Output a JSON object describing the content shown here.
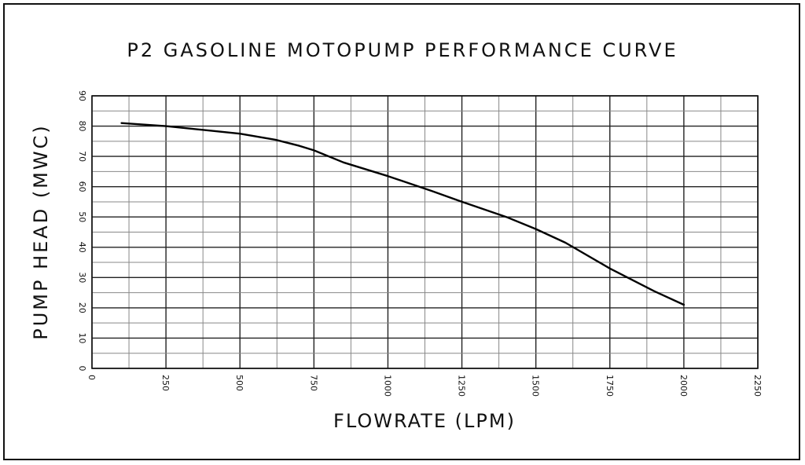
{
  "chart_data": {
    "type": "line",
    "title": "P2 GASOLINE MOTOPUMP PERFORMANCE CURVE",
    "xlabel": "FLOWRATE (LPM)",
    "ylabel": "PUMP HEAD (MWC)",
    "xlim": [
      0,
      2250
    ],
    "ylim": [
      0,
      90
    ],
    "x_ticks": [
      "0",
      "250",
      "500",
      "750",
      "1000",
      "1250",
      "1500",
      "1750",
      "2000",
      "2250"
    ],
    "y_ticks": [
      "0",
      "10",
      "20",
      "30",
      "40",
      "50",
      "60",
      "70",
      "80",
      "90"
    ],
    "grid": true,
    "x_minor_step": 125,
    "y_minor_step": 5,
    "series": [
      {
        "x": [
          100,
          250,
          400,
          500,
          620,
          700,
          750,
          850,
          1000,
          1150,
          1250,
          1400,
          1500,
          1600,
          1750,
          1900,
          2000
        ],
        "y": [
          81,
          80,
          78.5,
          77.5,
          75.5,
          73.5,
          72,
          68,
          63.5,
          58.5,
          55,
          50,
          46,
          41.5,
          33,
          25.5,
          21
        ]
      }
    ]
  }
}
